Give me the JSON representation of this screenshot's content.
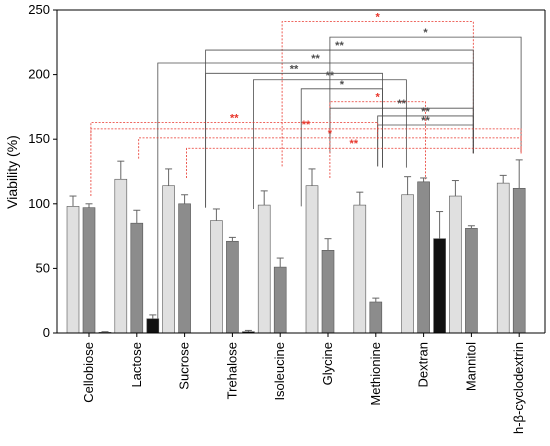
{
  "chart_data": {
    "type": "bar",
    "title": "",
    "xlabel": "",
    "ylabel": "Viability (%)",
    "ylim": [
      0,
      250
    ],
    "yticks": [
      0,
      50,
      100,
      150,
      200,
      250
    ],
    "grid": false,
    "legend": "none",
    "categories": [
      "Cellobiose",
      "Lactose",
      "Sucrose",
      "Trehalose",
      "Isoleucine",
      "Glycine",
      "Methionine",
      "Dextran",
      "Mannitol",
      "h-β-cyclodextrin"
    ],
    "series": [
      {
        "values": [
          98,
          119,
          114,
          87,
          99,
          114,
          99,
          107,
          106,
          116
        ],
        "errors": [
          8,
          14,
          13,
          9,
          11,
          13,
          10,
          14,
          12,
          6
        ],
        "color": "#e0e0e0"
      },
      {
        "values": [
          97,
          85,
          100,
          71,
          51,
          64,
          24,
          117,
          81,
          112
        ],
        "errors": [
          3,
          10,
          7,
          3,
          7,
          9,
          3,
          3,
          2,
          22
        ],
        "color": "#8c8c8c"
      },
      {
        "values": [
          0.5,
          11,
          null,
          1,
          null,
          null,
          null,
          73,
          null,
          null
        ],
        "errors": [
          0.5,
          3,
          null,
          1,
          null,
          null,
          null,
          21,
          null,
          null
        ],
        "color": "#111111"
      }
    ],
    "significance": [
      {
        "x1": 4.5,
        "y": 241,
        "x2": 8.5,
        "label": "*",
        "color": "#e8352b",
        "style": "dashed",
        "drop1": 129,
        "drop2": 139
      },
      {
        "x1": 5.5,
        "y": 229,
        "x2": 9.5,
        "label": "*",
        "color": "#4d4d4d",
        "style": "solid",
        "drop1": 139,
        "drop2": 140
      },
      {
        "x1": 2.9,
        "y": 219,
        "x2": 8.5,
        "label": "**",
        "color": "#4d4d4d",
        "style": "solid",
        "drop1": 97,
        "drop2": 139
      },
      {
        "x1": 1.9,
        "y": 209,
        "x2": 8.5,
        "label": "**",
        "color": "#4d4d4d",
        "style": "solid",
        "drop1": 5,
        "drop2": 139
      },
      {
        "x1": 2.9,
        "y": 201,
        "x2": 6.6,
        "label": "**",
        "color": "#4d4d4d",
        "style": "solid",
        "drop1": 97,
        "drop2": 128
      },
      {
        "x1": 3.9,
        "y": 196,
        "x2": 7.1,
        "label": "**",
        "color": "#4d4d4d",
        "style": "solid",
        "drop1": 96,
        "drop2": 128
      },
      {
        "x1": 4.9,
        "y": 189,
        "x2": 6.6,
        "label": "*",
        "color": "#4d4d4d",
        "style": "solid",
        "drop1": 98,
        "drop2": 128
      },
      {
        "x1": 5.5,
        "y": 179,
        "x2": 7.5,
        "label": "*",
        "color": "#e8352b",
        "style": "dashed",
        "drop1": 120,
        "drop2": 119
      },
      {
        "x1": 5.5,
        "y": 174,
        "x2": 8.5,
        "label": "**",
        "color": "#4d4d4d",
        "style": "solid",
        "drop1": 150,
        "drop2": 139
      },
      {
        "x1": 6.5,
        "y": 168,
        "x2": 8.5,
        "label": "**",
        "color": "#4d4d4d",
        "style": "solid",
        "drop1": 129,
        "drop2": 139
      },
      {
        "x1": 6.5,
        "y": 161,
        "x2": 8.5,
        "label": "**",
        "color": "#4d4d4d",
        "style": "solid",
        "drop1": 129,
        "drop2": 150
      },
      {
        "x1": 0.5,
        "y": 158,
        "x2": 9.5,
        "label": "**",
        "color": "#e8352b",
        "style": "dashed",
        "drop1": 106,
        "drop2": 139
      },
      {
        "x1": 1.5,
        "y": 151,
        "x2": 9.5,
        "label": "*",
        "color": "#e8352b",
        "style": "dashed",
        "drop1": 135,
        "drop2": 150
      },
      {
        "x1": 2.5,
        "y": 143,
        "x2": 9.5,
        "label": "**",
        "color": "#e8352b",
        "style": "dashed",
        "drop1": 120,
        "drop2": 139
      },
      {
        "x1": 0.5,
        "y": 163,
        "x2": 6.5,
        "label": "**",
        "color": "#e8352b",
        "style": "dashed",
        "drop1": 150,
        "drop2": 150
      }
    ]
  }
}
